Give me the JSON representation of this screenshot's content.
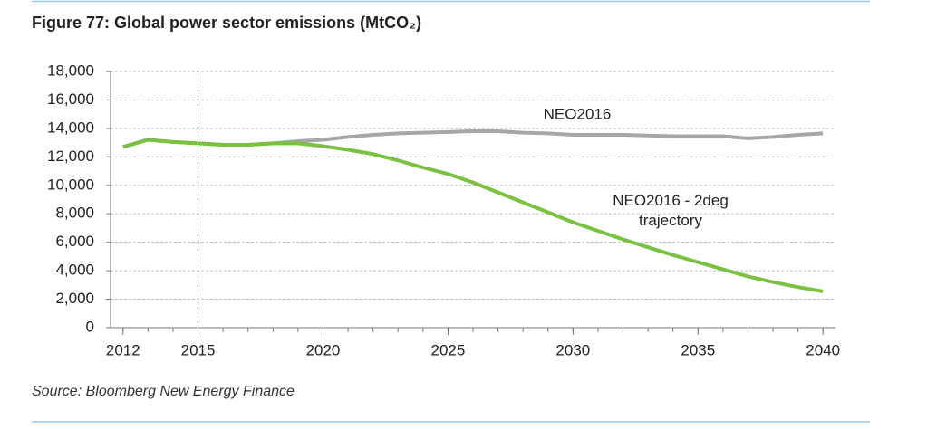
{
  "chart_data": {
    "type": "line",
    "title": "Figure 77: Global power sector emissions (MtCO₂)",
    "source": "Source: Bloomberg New Energy Finance",
    "x": [
      2012,
      2013,
      2014,
      2015,
      2016,
      2017,
      2018,
      2019,
      2020,
      2021,
      2022,
      2023,
      2024,
      2025,
      2026,
      2027,
      2028,
      2029,
      2030,
      2031,
      2032,
      2033,
      2034,
      2035,
      2036,
      2037,
      2038,
      2039,
      2040
    ],
    "series": [
      {
        "name": "NEO2016",
        "color": "#a6a6a6",
        "values": [
          12700,
          13200,
          13050,
          12950,
          12850,
          12850,
          12950,
          13100,
          13200,
          13400,
          13550,
          13650,
          13700,
          13750,
          13800,
          13800,
          13700,
          13650,
          13550,
          13550,
          13550,
          13500,
          13450,
          13450,
          13450,
          13300,
          13400,
          13550,
          13650
        ]
      },
      {
        "name": "NEO2016 - 2deg trajectory",
        "color": "#7ac143",
        "values": [
          12700,
          13200,
          13050,
          12950,
          12850,
          12850,
          12950,
          12950,
          12750,
          12500,
          12200,
          11750,
          11250,
          10800,
          10200,
          9500,
          8800,
          8100,
          7400,
          6800,
          6200,
          5650,
          5100,
          4600,
          4100,
          3600,
          3200,
          2850,
          2550
        ]
      }
    ],
    "xlim": [
      2011.5,
      2040.5
    ],
    "xticks": [
      2012,
      2015,
      2020,
      2025,
      2030,
      2035,
      2040
    ],
    "ylim": [
      0,
      18000
    ],
    "yticks": [
      0,
      {
        "value": 2000,
        "label": "2,000"
      },
      {
        "value": 4000,
        "label": "4,000"
      },
      {
        "value": 6000,
        "label": "6,000"
      },
      {
        "value": 8000,
        "label": "8,000"
      },
      {
        "value": 10000,
        "label": "10,000"
      },
      {
        "value": 12000,
        "label": "12,000"
      },
      {
        "value": 14000,
        "label": "14,000"
      },
      {
        "value": 16000,
        "label": "16,000"
      },
      {
        "value": 18000,
        "label": "18,000"
      }
    ],
    "vline": 2015,
    "grid": true
  }
}
